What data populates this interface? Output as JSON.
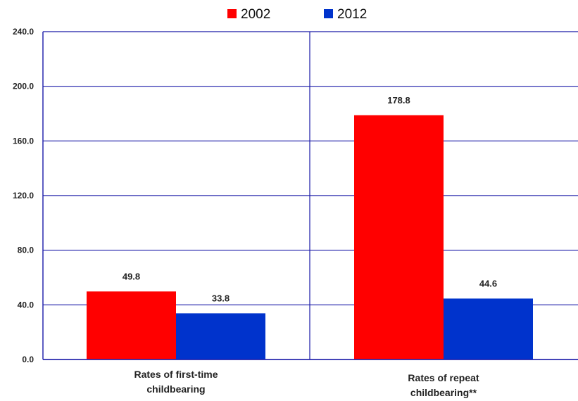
{
  "colors": {
    "series_2002": "#ff0000",
    "series_2012": "#0033cc",
    "grid": "#1a1aa8",
    "axis": "#1a1aa8"
  },
  "chart_data": {
    "type": "bar",
    "title": "",
    "xlabel": "",
    "ylabel": "",
    "categories": [
      [
        "Rates of first-time",
        "childbearing"
      ],
      [
        "Rates of repeat",
        "childbearing**"
      ]
    ],
    "series": [
      {
        "name": "2002",
        "values": [
          49.8,
          178.8
        ],
        "labels": [
          "49.8",
          "178.8"
        ]
      },
      {
        "name": "2012",
        "values": [
          33.8,
          44.6
        ],
        "labels": [
          "33.8",
          "44.6"
        ]
      }
    ],
    "ylim": [
      0,
      240
    ],
    "yticks": [
      "0.0",
      "40.0",
      "80.0",
      "120.0",
      "160.0",
      "200.0",
      "240.0"
    ],
    "ytick_values": [
      0,
      40,
      80,
      120,
      160,
      200,
      240
    ],
    "grid": true,
    "legend_position": "top-center"
  }
}
